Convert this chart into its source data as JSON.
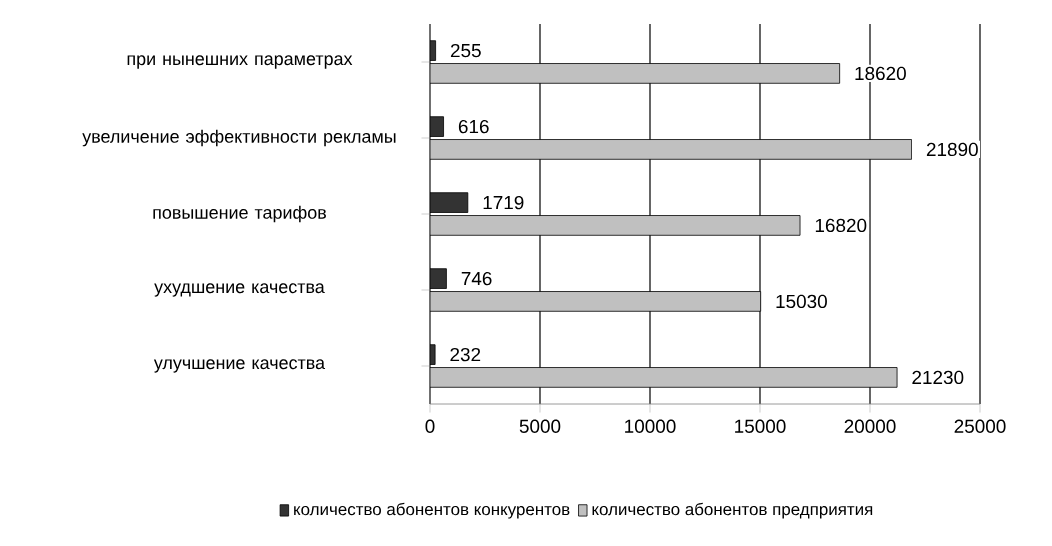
{
  "chart_data": {
    "type": "bar",
    "orientation": "horizontal",
    "categories": [
      "при нынешних параметрах",
      "увеличение эффективности рекламы",
      "повышение тарифов",
      "ухудшение качества",
      "улучшение качества"
    ],
    "series": [
      {
        "name": "количество абонентов конкурентов",
        "color": "#333333",
        "values": [
          255,
          616,
          1719,
          746,
          232
        ]
      },
      {
        "name": "количество абонентов предприятия",
        "color": "#c0c0c0",
        "values": [
          18620,
          21890,
          16820,
          15030,
          21230
        ]
      }
    ],
    "xlim": [
      0,
      25000
    ],
    "xticks": [
      0,
      5000,
      10000,
      15000,
      20000,
      25000
    ],
    "grid": "x",
    "legend": "bottom",
    "data_labels": true
  }
}
